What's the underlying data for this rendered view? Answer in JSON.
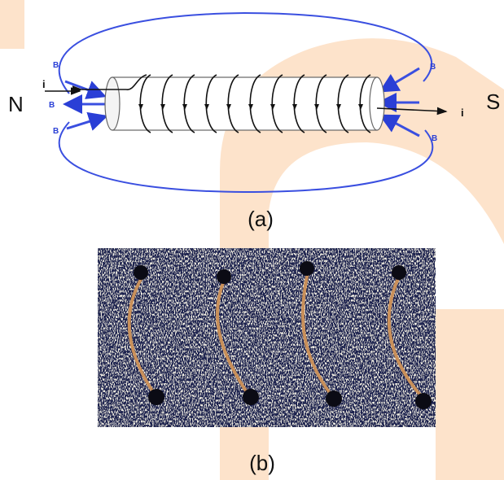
{
  "figure": {
    "panel_a": {
      "pole_left": "N",
      "pole_right": "S",
      "current_in": "i",
      "current_out": "i",
      "field_labels": [
        "B",
        "B",
        "B",
        "B",
        "B"
      ],
      "caption": "(a)"
    },
    "panel_b": {
      "caption": "(b)"
    }
  }
}
